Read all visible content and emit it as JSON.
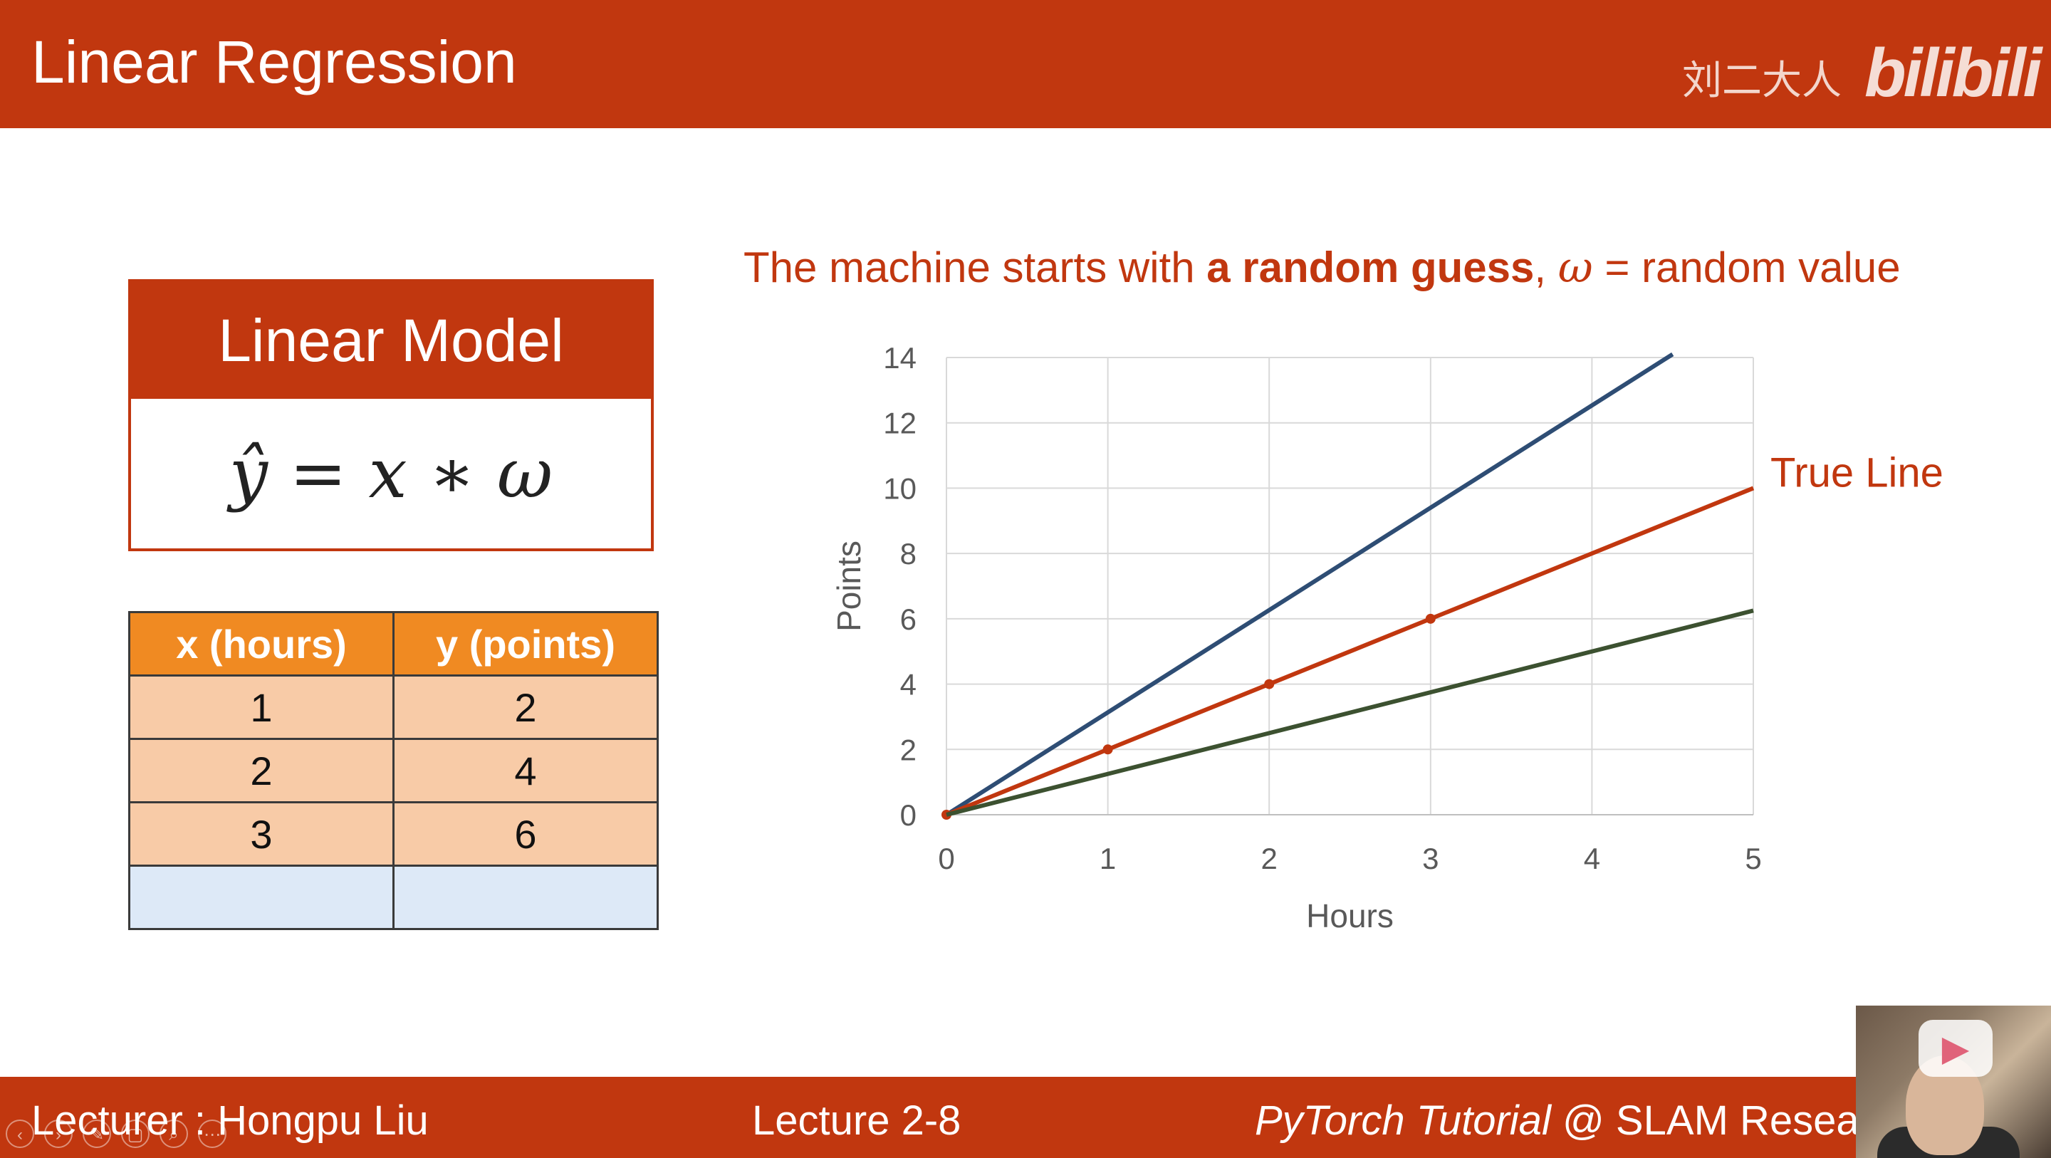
{
  "header": {
    "title": "Linear Regression",
    "author_mark": "刘二大人",
    "site_logo": "bilibili"
  },
  "model_box": {
    "title": "Linear Model",
    "formula": "ŷ = x ∗ ω"
  },
  "table": {
    "headers": [
      "x (hours)",
      "y (points)"
    ],
    "rows": [
      [
        "1",
        "2"
      ],
      [
        "2",
        "4"
      ],
      [
        "3",
        "6"
      ],
      [
        "",
        ""
      ]
    ]
  },
  "caption": {
    "part1": "The machine starts with ",
    "bold": "a random guess",
    "part2": ", ",
    "omega": "ω",
    "part3": " = random value"
  },
  "chart_data": {
    "type": "line",
    "xlabel": "Hours",
    "ylabel": "Points",
    "xlim": [
      0,
      5
    ],
    "ylim": [
      0,
      14
    ],
    "xticks": [
      0,
      1,
      2,
      3,
      4,
      5
    ],
    "yticks": [
      0,
      2,
      4,
      6,
      8,
      10,
      12,
      14
    ],
    "grid": true,
    "series": [
      {
        "color": "#2e4d74",
        "points": [
          [
            0,
            0
          ],
          [
            4.5,
            14.1
          ]
        ]
      },
      {
        "name": "True Line",
        "color": "#c1370f",
        "points": [
          [
            0,
            0
          ],
          [
            5,
            10
          ]
        ],
        "markers": [
          [
            0,
            0
          ],
          [
            1,
            2
          ],
          [
            2,
            4
          ],
          [
            3,
            6
          ]
        ]
      },
      {
        "color": "#3c5130",
        "points": [
          [
            0,
            0
          ],
          [
            5,
            6.25
          ]
        ]
      }
    ]
  },
  "footer": {
    "lecturer": "Lecturer : Hongpu Liu",
    "lecture": "Lecture 2-8",
    "course_italic": "PyTorch Tutorial",
    "course_rest": " @ SLAM Resear"
  },
  "player_controls": [
    "‹",
    "›",
    "✎",
    "▢",
    "⌕",
    "⋯"
  ],
  "colors": {
    "accent": "#c1370f",
    "table_header": "#f08a22",
    "table_cell": "#f8cba7",
    "table_empty": "#dde9f7"
  }
}
